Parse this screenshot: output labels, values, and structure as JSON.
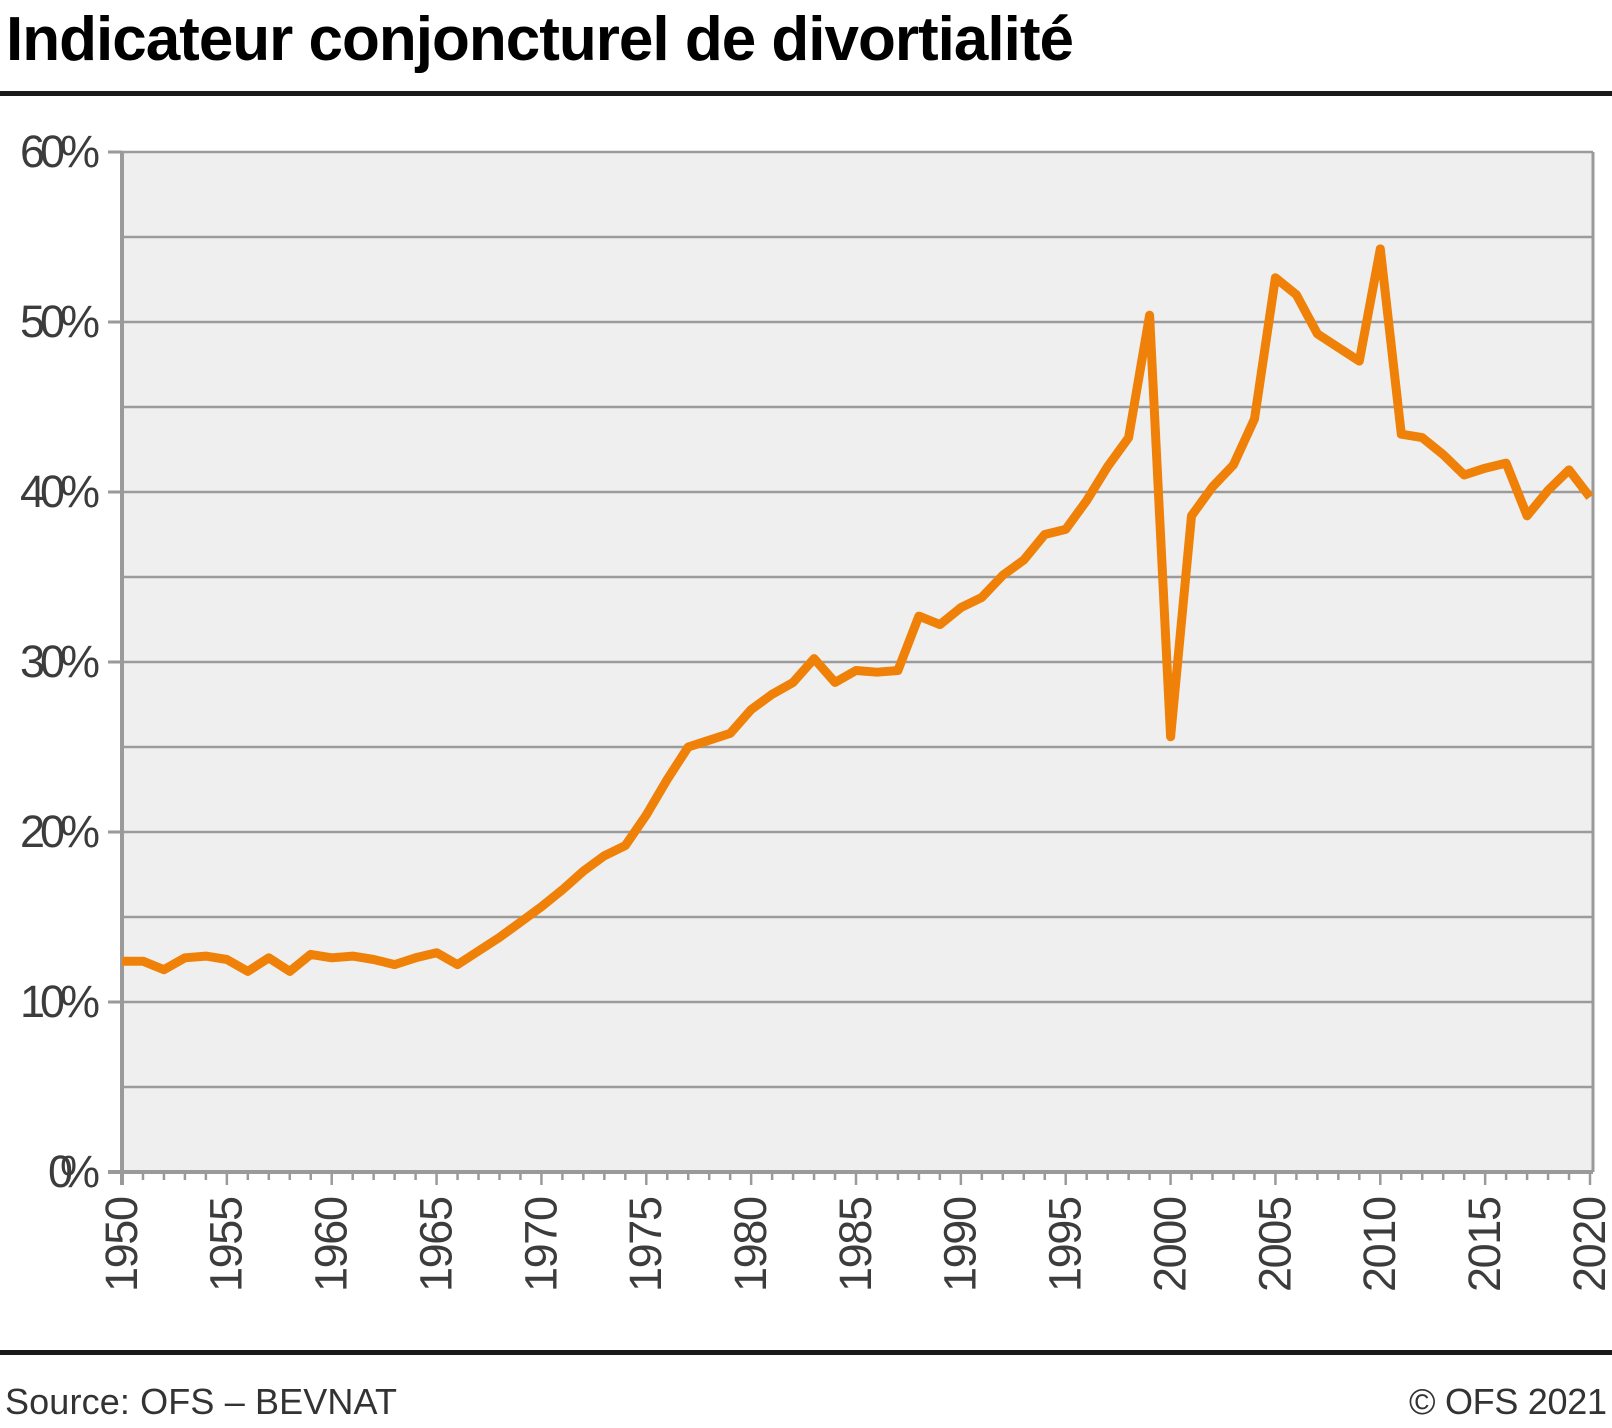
{
  "header": {
    "title": "Indicateur conjoncturel de divortialité"
  },
  "footer": {
    "source": "Source: OFS – BEVNAT",
    "copyright": "© OFS 2021"
  },
  "colors": {
    "line": "#ef8109",
    "plot_background": "#efefef",
    "grid": "#9b9b9b",
    "axis": "#9a9a9a",
    "tick": "#9a9a9a",
    "label_text": "#3c3c3c",
    "title_text": "#000000",
    "rule": "#1a1a1a",
    "footer_text": "#333333"
  },
  "chart_data": {
    "type": "line",
    "title": "Indicateur conjoncturel de divortialité",
    "source_label": "Source: OFS – BEVNAT",
    "copyright_label": "© OFS 2021",
    "unit": "%",
    "xlabel": "",
    "ylabel": "",
    "ylim": [
      0,
      60
    ],
    "xlim": [
      1950,
      2020
    ],
    "grid": "on",
    "grid_step_percent": 5,
    "y_tick_labels": [
      "0%",
      "10%",
      "20%",
      "30%",
      "40%",
      "50%",
      "60%"
    ],
    "x_minor_tick_step_years": 1,
    "x_label_step_years": 5,
    "legend": "none",
    "x": [
      1950,
      1951,
      1952,
      1953,
      1954,
      1955,
      1956,
      1957,
      1958,
      1959,
      1960,
      1961,
      1962,
      1963,
      1964,
      1965,
      1966,
      1967,
      1968,
      1969,
      1970,
      1971,
      1972,
      1973,
      1974,
      1975,
      1976,
      1977,
      1978,
      1979,
      1980,
      1981,
      1982,
      1983,
      1984,
      1985,
      1986,
      1987,
      1988,
      1989,
      1990,
      1991,
      1992,
      1993,
      1994,
      1995,
      1996,
      1997,
      1998,
      1999,
      2000,
      2001,
      2002,
      2003,
      2004,
      2005,
      2006,
      2007,
      2008,
      2009,
      2010,
      2011,
      2012,
      2013,
      2014,
      2015,
      2016,
      2017,
      2018,
      2019,
      2020
    ],
    "values": [
      12.4,
      12.4,
      11.9,
      12.6,
      12.7,
      12.5,
      11.8,
      12.6,
      11.8,
      12.8,
      12.6,
      12.7,
      12.5,
      12.2,
      12.6,
      12.9,
      12.2,
      13.0,
      13.8,
      14.7,
      15.6,
      16.6,
      17.7,
      18.6,
      19.2,
      21.0,
      23.1,
      25.0,
      25.4,
      25.8,
      27.2,
      28.1,
      28.8,
      30.2,
      28.8,
      29.5,
      29.4,
      29.5,
      32.7,
      32.2,
      33.2,
      33.8,
      35.1,
      36.0,
      37.5,
      37.8,
      39.5,
      41.5,
      43.2,
      50.4,
      25.6,
      38.6,
      40.3,
      41.6,
      44.3,
      52.6,
      51.6,
      49.3,
      48.5,
      47.7,
      54.3,
      43.4,
      43.2,
      42.2,
      41.0,
      41.4,
      41.7,
      38.6,
      40.1,
      41.3,
      39.7
    ]
  }
}
